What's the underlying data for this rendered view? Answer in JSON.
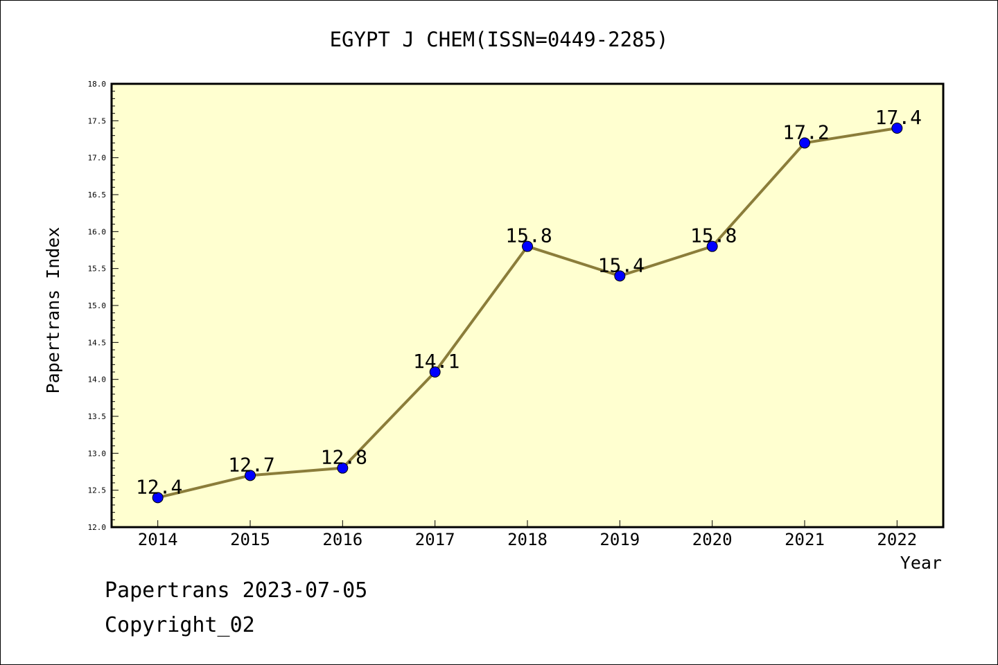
{
  "chart_data": {
    "type": "line",
    "title": "EGYPT J CHEM(ISSN=0449-2285)",
    "xlabel": "Year",
    "ylabel": "Papertrans Index",
    "categories": [
      "2014",
      "2015",
      "2016",
      "2017",
      "2018",
      "2019",
      "2020",
      "2021",
      "2022"
    ],
    "series": [
      {
        "values": [
          12.4,
          12.7,
          12.8,
          14.1,
          15.8,
          15.4,
          15.8,
          17.2,
          17.4
        ]
      }
    ],
    "data_labels": [
      "12.4",
      "12.7",
      "12.8",
      "14.1",
      "15.8",
      "15.4",
      "15.8",
      "17.2",
      "17.4"
    ],
    "ylim": [
      12.0,
      18.0
    ],
    "yticks": [
      "12.0",
      "12.5",
      "13.0",
      "13.5",
      "14.0",
      "14.5",
      "15.0",
      "15.5",
      "16.0",
      "16.5",
      "17.0",
      "17.5",
      "18.0"
    ],
    "grid": false,
    "colors": {
      "plot_background": "#ffffd0",
      "line": "#8b7d3a",
      "marker": "#0000ff"
    }
  },
  "footer": {
    "date_line": "Papertrans 2023-07-05",
    "copyright": "Copyright_02"
  }
}
